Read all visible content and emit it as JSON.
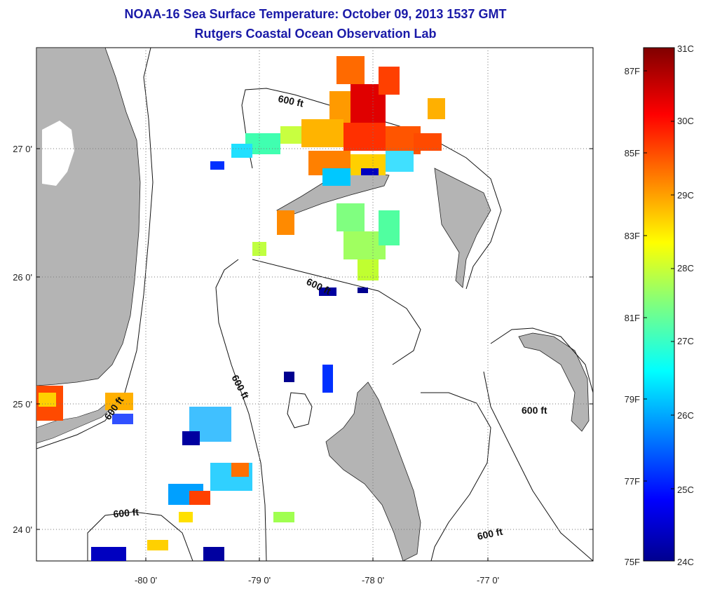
{
  "header": {
    "title": "NOAA-16 Sea Surface Temperature:  October 09, 2013 1537 GMT",
    "subtitle": "Rutgers Coastal Ocean Observation Lab"
  },
  "map": {
    "lon_labels": [
      "-80 0'",
      "-79 0'",
      "-78 0'",
      "-77 0'"
    ],
    "lat_labels": [
      "27 0'",
      "26 0'",
      "25 0'",
      "24 0'"
    ],
    "contour_label": "600 ft",
    "colors": {
      "land": "#b4b4b4",
      "contour": "#111111",
      "grid": "#777777"
    }
  },
  "colorbar": {
    "celsius_labels": [
      "31C",
      "30C",
      "29C",
      "28C",
      "27C",
      "26C",
      "25C",
      "24C"
    ],
    "fahrenheit_labels": [
      "87F",
      "85F",
      "83F",
      "81F",
      "79F",
      "77F",
      "75F"
    ],
    "range_c": [
      24,
      31
    ],
    "range_f": [
      75,
      87
    ]
  }
}
